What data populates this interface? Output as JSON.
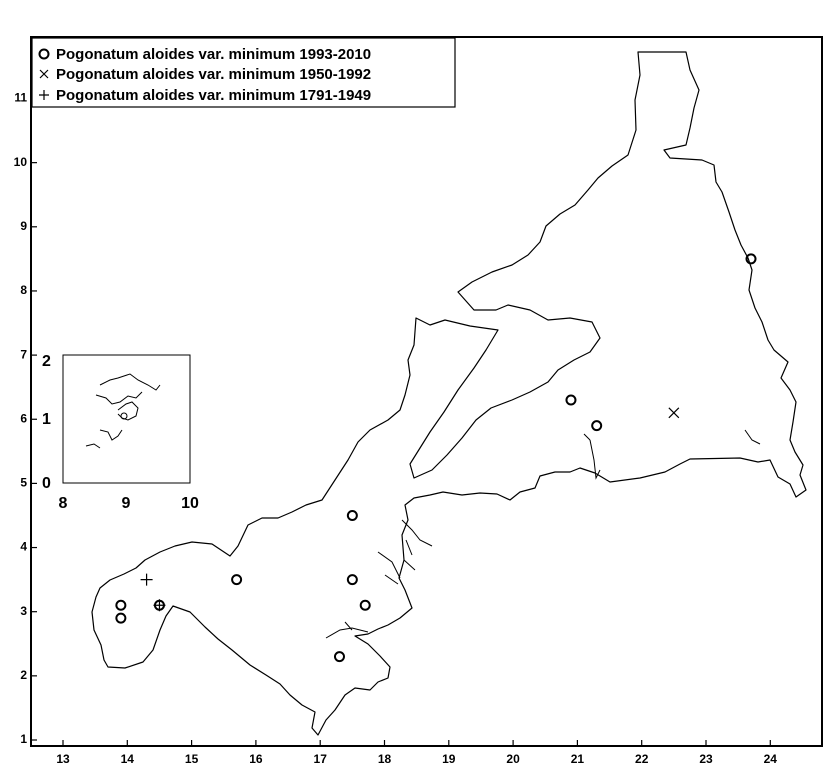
{
  "chart_data": {
    "type": "scatter",
    "title": "",
    "xlabel": "",
    "ylabel": "",
    "xlim": [
      12.6,
      24.9
    ],
    "ylim": [
      0.9,
      11.75
    ],
    "x_ticks": [
      13,
      14,
      15,
      16,
      17,
      18,
      19,
      20,
      21,
      22,
      23,
      24
    ],
    "y_ticks": [
      1,
      2,
      3,
      4,
      5,
      6,
      7,
      8,
      9,
      10,
      11
    ],
    "grid": false,
    "legend_position": "top-left",
    "series": [
      {
        "name": "Pogonatum aloides var. minimum 1993-2010",
        "marker": "circle",
        "points": [
          {
            "x": 13.9,
            "y": 3.1
          },
          {
            "x": 13.9,
            "y": 2.9
          },
          {
            "x": 14.5,
            "y": 3.1
          },
          {
            "x": 15.7,
            "y": 3.5
          },
          {
            "x": 17.5,
            "y": 4.5
          },
          {
            "x": 17.5,
            "y": 3.5
          },
          {
            "x": 17.7,
            "y": 3.1
          },
          {
            "x": 17.3,
            "y": 2.3
          },
          {
            "x": 20.9,
            "y": 6.3
          },
          {
            "x": 21.3,
            "y": 5.9
          },
          {
            "x": 23.7,
            "y": 8.5
          }
        ]
      },
      {
        "name": "Pogonatum aloides var. minimum 1950-1992",
        "marker": "x",
        "points": [
          {
            "x": 22.5,
            "y": 6.1
          }
        ]
      },
      {
        "name": "Pogonatum aloides var. minimum 1791-1949",
        "marker": "plus",
        "points": [
          {
            "x": 14.3,
            "y": 3.5
          },
          {
            "x": 14.5,
            "y": 3.1
          }
        ]
      }
    ],
    "inset": {
      "x_ticks": [
        "8",
        "9",
        "10"
      ],
      "y_ticks": [
        "0",
        "1",
        "2"
      ]
    }
  }
}
